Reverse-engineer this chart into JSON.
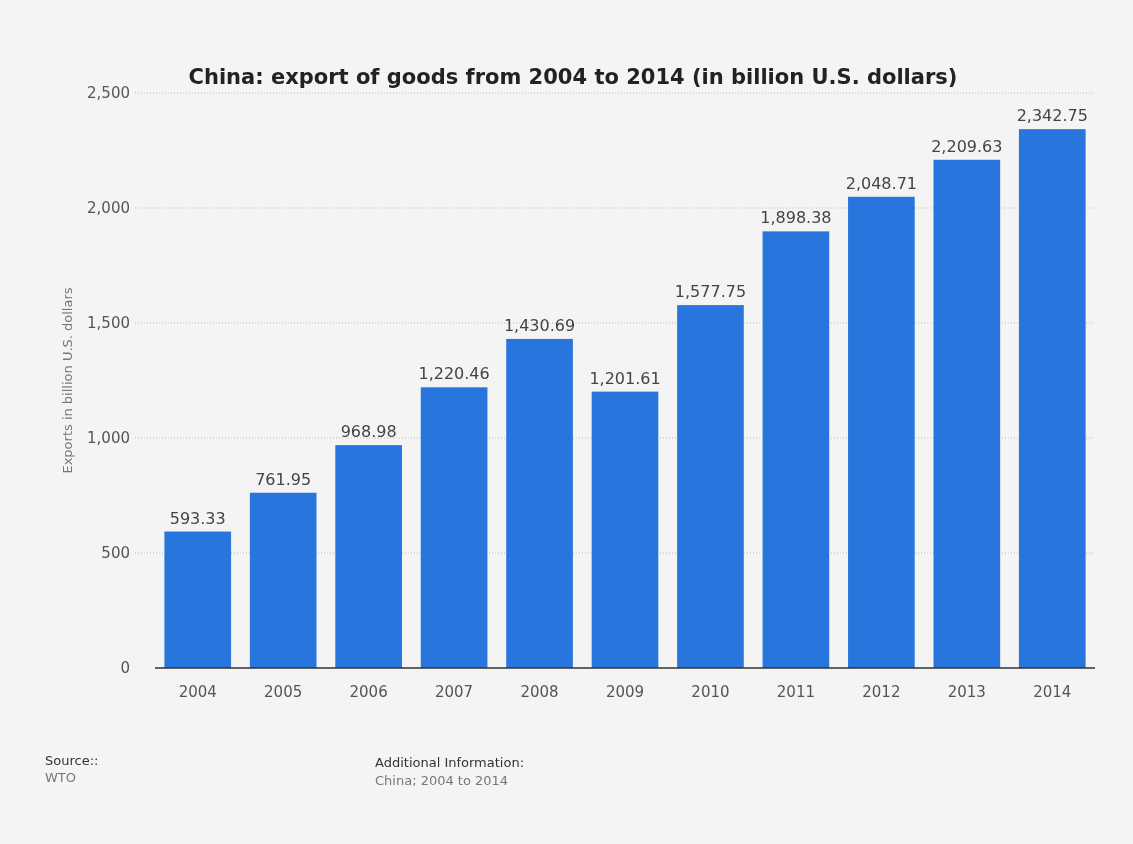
{
  "chart_data": {
    "type": "bar",
    "title": "China: export of goods from 2004 to 2014 (in billion U.S. dollars)",
    "ylabel": "Exports in billion U.S. dollars",
    "categories": [
      "2004",
      "2005",
      "2006",
      "2007",
      "2008",
      "2009",
      "2010",
      "2011",
      "2012",
      "2013",
      "2014"
    ],
    "values": [
      593.33,
      761.95,
      968.98,
      1220.46,
      1430.69,
      1201.61,
      1577.75,
      1898.38,
      2048.71,
      2209.63,
      2342.75
    ],
    "value_labels": [
      "593.33",
      "761.95",
      "968.98",
      "1,220.46",
      "1,430.69",
      "1,201.61",
      "1,577.75",
      "1,898.38",
      "2,048.71",
      "2,209.63",
      "2,342.75"
    ],
    "color": "#2775dd",
    "ylim": [
      0,
      2500
    ],
    "yticks": [
      0,
      500,
      {
        "value": 1000,
        "label": "1,000"
      },
      {
        "value": 1500,
        "label": "1,500"
      },
      {
        "value": 2000,
        "label": "2,000"
      },
      {
        "value": 2500,
        "label": "2,500"
      }
    ],
    "grid": "y",
    "annotations": [
      "Source::",
      "WTO",
      "Additional Information:",
      "China; 2004 to 2014"
    ]
  }
}
